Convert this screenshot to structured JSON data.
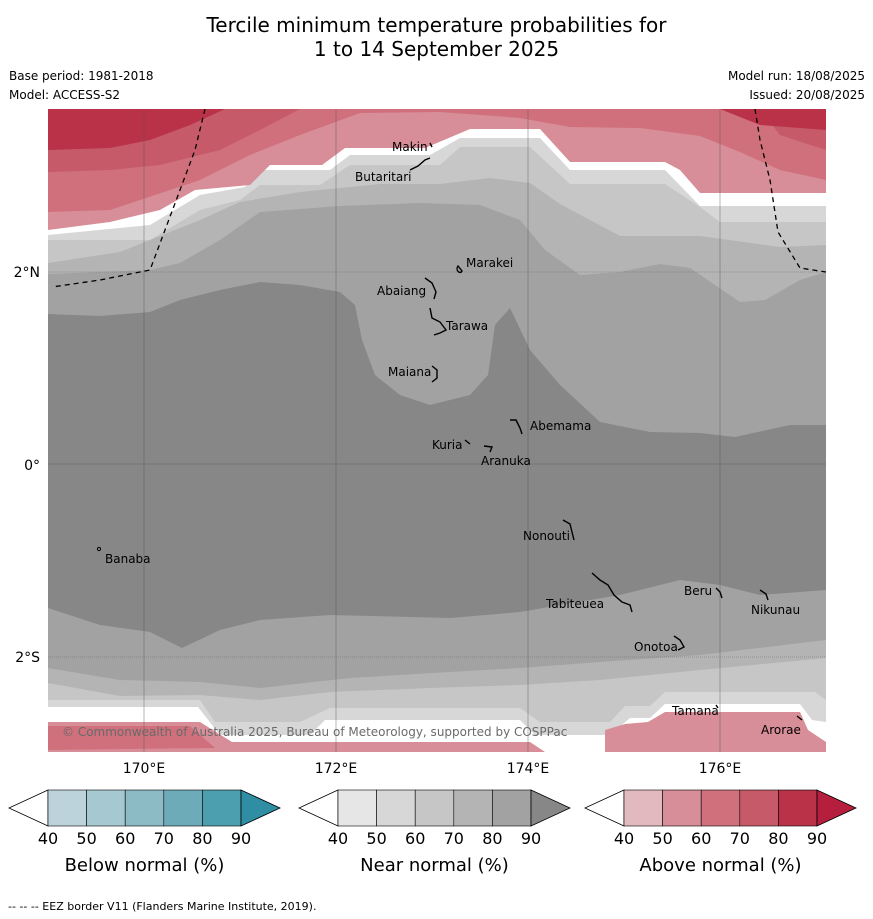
{
  "title_line1": "Tercile minimum temperature probabilities for",
  "title_line2": "1 to 14 September 2025",
  "base_period": "Base period: 1981-2018",
  "model": "Model: ACCESS-S2",
  "model_run": "Model run: 18/08/2025",
  "issued": "Issued: 20/08/2025",
  "copyright": "© Commonwealth of Australia 2025, Bureau of Meteorology, supported by COSPPac",
  "footer": "--  --  -- EEZ border V11 (Flanders Marine Institute, 2019).",
  "map": {
    "lon_labels": [
      "170°E",
      "172°E",
      "174°E",
      "176°E"
    ],
    "lat_labels": [
      "2°N",
      "0°",
      "2°S"
    ],
    "places": [
      {
        "name": "Makin"
      },
      {
        "name": "Butaritari"
      },
      {
        "name": "Marakei"
      },
      {
        "name": "Abaiang"
      },
      {
        "name": "Tarawa"
      },
      {
        "name": "Maiana"
      },
      {
        "name": "Abemama"
      },
      {
        "name": "Kuria"
      },
      {
        "name": "Aranuka"
      },
      {
        "name": "Nonouti"
      },
      {
        "name": "Banaba"
      },
      {
        "name": "Beru"
      },
      {
        "name": "Tabiteuea"
      },
      {
        "name": "Nikunau"
      },
      {
        "name": "Onotoa"
      },
      {
        "name": "Tamana"
      },
      {
        "name": "Arorae"
      }
    ]
  },
  "colorbars": [
    {
      "label": "Below normal (%)",
      "ticks": [
        "40",
        "50",
        "60",
        "70",
        "80",
        "90"
      ],
      "colors": [
        "#bdd3db",
        "#a6c8d1",
        "#8cbac5",
        "#6eabb8",
        "#4b9fae",
        "#2f8ea3"
      ]
    },
    {
      "label": "Near normal (%)",
      "ticks": [
        "40",
        "50",
        "60",
        "70",
        "80",
        "90"
      ],
      "colors": [
        "#e6e6e6",
        "#d7d7d7",
        "#c6c6c6",
        "#b4b4b4",
        "#a2a2a2",
        "#878787"
      ]
    },
    {
      "label": "Above normal (%)",
      "ticks": [
        "40",
        "50",
        "60",
        "70",
        "80",
        "90"
      ],
      "colors": [
        "#e3b9c0",
        "#d88e98",
        "#cf707c",
        "#c65a68",
        "#b93248",
        "#b51e3c"
      ]
    }
  ]
}
